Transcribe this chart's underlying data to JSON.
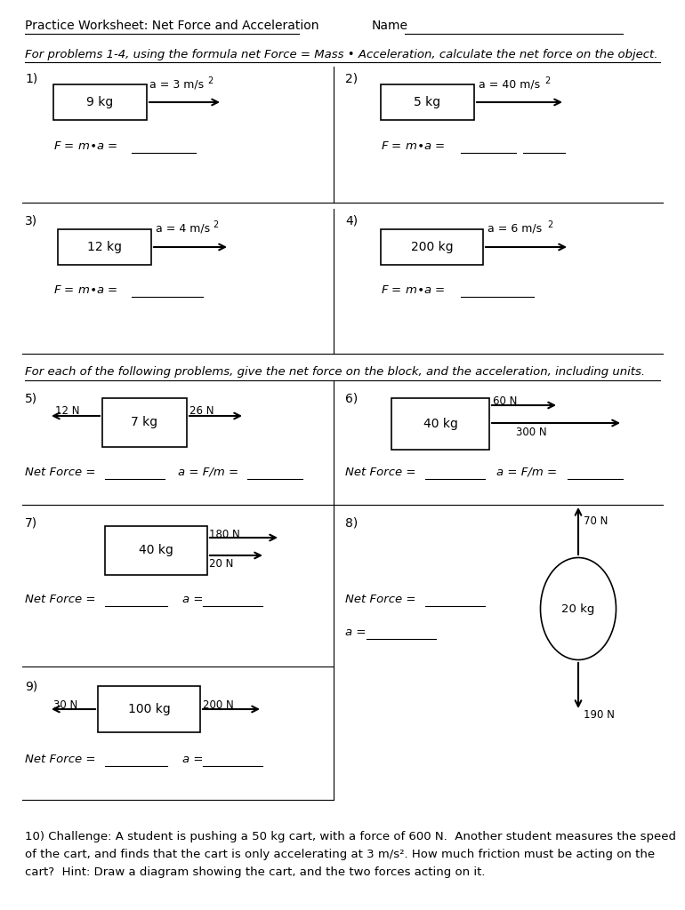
{
  "bg_color": "#ffffff",
  "text_color": "#000000",
  "title": "Practice Worksheet: Net Force and Acceleration",
  "name_label": "Name",
  "instructions1": "For problems 1-4, using the formula net Force = Mass • Acceleration, calculate the net force on the object.",
  "instructions2": "For each of the following problems, give the net force on the block, and the acceleration, including units.",
  "problem10_line1": "10) Challenge: A student is pushing a 50 kg cart, with a force of 600 N.  Another student measures the speed",
  "problem10_line2": "of the cart, and finds that the cart is only accelerating at 3 m/s². How much friction must be acting on the",
  "problem10_line3": "cart?  Hint: Draw a diagram showing the cart, and the two forces acting on it."
}
